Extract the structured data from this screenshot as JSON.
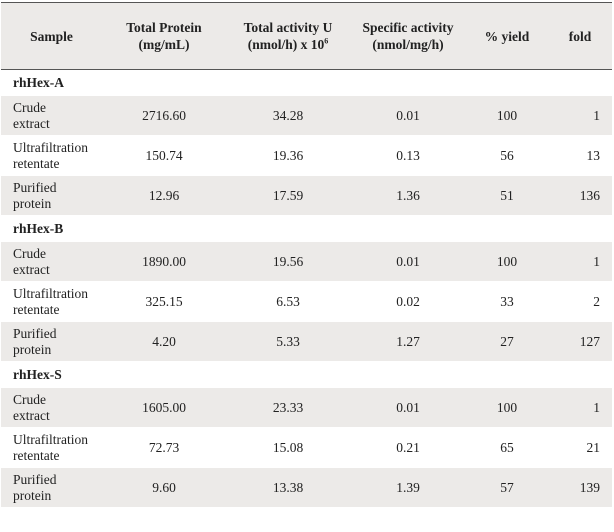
{
  "headers": {
    "sample": "Sample",
    "protein_l1": "Total Protein",
    "protein_l2": "(mg/mL)",
    "activity_l1": "Total activity U",
    "activity_l2": "(nmol/h) x 10",
    "activity_exp": "6",
    "specific_l1": "Specific activity",
    "specific_l2": "(nmol/mg/h)",
    "yield": "% yield",
    "fold": "fold"
  },
  "groups": [
    {
      "name": "rhHex-A",
      "rows": [
        {
          "l1": "Crude",
          "l2": "extract",
          "protein": "2716.60",
          "activity": "34.28",
          "specific": "0.01",
          "yield": "100",
          "fold": "1"
        },
        {
          "l1": "Ultrafiltration",
          "l2": "retentate",
          "protein": "150.74",
          "activity": "19.36",
          "specific": "0.13",
          "yield": "56",
          "fold": "13"
        },
        {
          "l1": "Purified",
          "l2": "protein",
          "protein": "12.96",
          "activity": "17.59",
          "specific": "1.36",
          "yield": "51",
          "fold": "136"
        }
      ]
    },
    {
      "name": "rhHex-B",
      "rows": [
        {
          "l1": "Crude",
          "l2": "extract",
          "protein": "1890.00",
          "activity": "19.56",
          "specific": "0.01",
          "yield": "100",
          "fold": "1"
        },
        {
          "l1": "Ultrafiltration",
          "l2": "retentate",
          "protein": "325.15",
          "activity": "6.53",
          "specific": "0.02",
          "yield": "33",
          "fold": "2"
        },
        {
          "l1": "Purified",
          "l2": "protein",
          "protein": "4.20",
          "activity": "5.33",
          "specific": "1.27",
          "yield": "27",
          "fold": "127"
        }
      ]
    },
    {
      "name": "rhHex-S",
      "rows": [
        {
          "l1": "Crude",
          "l2": "extract",
          "protein": "1605.00",
          "activity": "23.33",
          "specific": "0.01",
          "yield": "100",
          "fold": "1"
        },
        {
          "l1": "Ultrafiltration",
          "l2": "retentate",
          "protein": "72.73",
          "activity": "15.08",
          "specific": "0.21",
          "yield": "65",
          "fold": "21"
        },
        {
          "l1": "Purified",
          "l2": "protein",
          "protein": "9.60",
          "activity": "13.38",
          "specific": "1.39",
          "yield": "57",
          "fold": "139"
        }
      ]
    }
  ]
}
